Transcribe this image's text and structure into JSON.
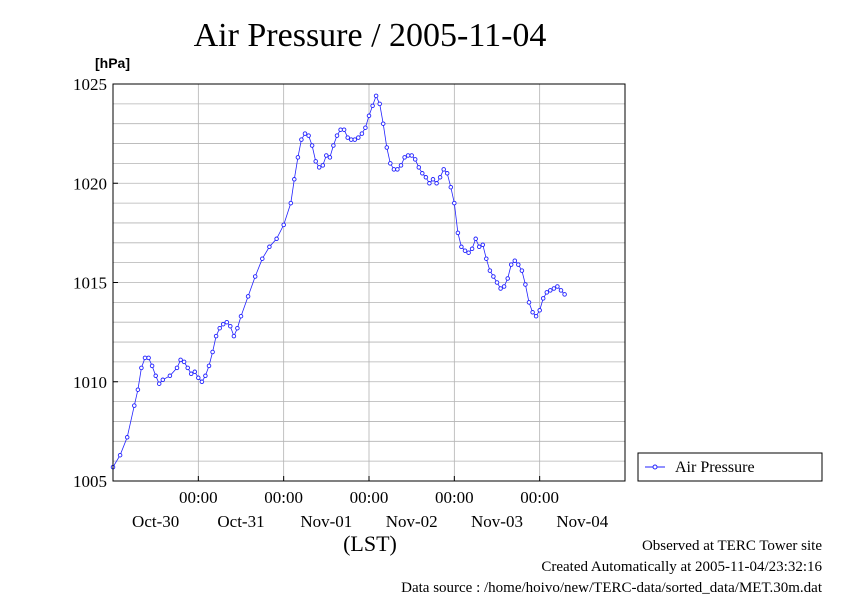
{
  "chart_data": {
    "type": "line",
    "title": "Air Pressure / 2005-11-04",
    "ylabel": "[hPa]",
    "xlabel": "(LST)",
    "ylim": [
      1005,
      1025
    ],
    "yticks": [
      "1005",
      "1010",
      "1015",
      "1020",
      "1025"
    ],
    "xlim_hours": [
      0,
      144
    ],
    "time_ticks": [
      "00:00",
      "00:00",
      "00:00",
      "00:00",
      "00:00"
    ],
    "date_ticks": [
      "Oct-30",
      "Oct-31",
      "Nov-01",
      "Nov-02",
      "Nov-03",
      "Nov-04"
    ],
    "grid": true,
    "legend_position": "right",
    "series": [
      {
        "name": "Air Pressure",
        "color": "#2222ff",
        "marker": "circle-open",
        "points": [
          [
            0,
            1005.7
          ],
          [
            2,
            1006.3
          ],
          [
            4,
            1007.2
          ],
          [
            6,
            1008.8
          ],
          [
            7,
            1009.6
          ],
          [
            8,
            1010.7
          ],
          [
            9,
            1011.2
          ],
          [
            10,
            1011.2
          ],
          [
            11,
            1010.8
          ],
          [
            12,
            1010.3
          ],
          [
            13,
            1009.9
          ],
          [
            14,
            1010.1
          ],
          [
            16,
            1010.3
          ],
          [
            18,
            1010.7
          ],
          [
            19,
            1011.1
          ],
          [
            20,
            1011.0
          ],
          [
            21,
            1010.7
          ],
          [
            22,
            1010.4
          ],
          [
            23,
            1010.5
          ],
          [
            24,
            1010.2
          ],
          [
            25,
            1010.0
          ],
          [
            26,
            1010.3
          ],
          [
            27,
            1010.8
          ],
          [
            28,
            1011.5
          ],
          [
            29,
            1012.3
          ],
          [
            30,
            1012.7
          ],
          [
            31,
            1012.9
          ],
          [
            32,
            1013.0
          ],
          [
            33,
            1012.8
          ],
          [
            34,
            1012.3
          ],
          [
            35,
            1012.7
          ],
          [
            36,
            1013.3
          ],
          [
            38,
            1014.3
          ],
          [
            40,
            1015.3
          ],
          [
            42,
            1016.2
          ],
          [
            44,
            1016.8
          ],
          [
            46,
            1017.2
          ],
          [
            48,
            1017.9
          ],
          [
            50,
            1019.0
          ],
          [
            51,
            1020.2
          ],
          [
            52,
            1021.3
          ],
          [
            53,
            1022.2
          ],
          [
            54,
            1022.5
          ],
          [
            55,
            1022.4
          ],
          [
            56,
            1021.9
          ],
          [
            57,
            1021.1
          ],
          [
            58,
            1020.8
          ],
          [
            59,
            1020.9
          ],
          [
            60,
            1021.4
          ],
          [
            61,
            1021.3
          ],
          [
            62,
            1021.9
          ],
          [
            63,
            1022.4
          ],
          [
            64,
            1022.7
          ],
          [
            65,
            1022.7
          ],
          [
            66,
            1022.3
          ],
          [
            67,
            1022.2
          ],
          [
            68,
            1022.2
          ],
          [
            69,
            1022.3
          ],
          [
            70,
            1022.5
          ],
          [
            71,
            1022.8
          ],
          [
            72,
            1023.4
          ],
          [
            73,
            1023.9
          ],
          [
            74,
            1024.4
          ],
          [
            75,
            1024.0
          ],
          [
            76,
            1023.0
          ],
          [
            77,
            1021.8
          ],
          [
            78,
            1021.0
          ],
          [
            79,
            1020.7
          ],
          [
            80,
            1020.7
          ],
          [
            81,
            1020.9
          ],
          [
            82,
            1021.3
          ],
          [
            83,
            1021.4
          ],
          [
            84,
            1021.4
          ],
          [
            85,
            1021.2
          ],
          [
            86,
            1020.8
          ],
          [
            87,
            1020.5
          ],
          [
            88,
            1020.3
          ],
          [
            89,
            1020.0
          ],
          [
            90,
            1020.2
          ],
          [
            91,
            1020.0
          ],
          [
            92,
            1020.3
          ],
          [
            93,
            1020.7
          ],
          [
            94,
            1020.5
          ],
          [
            95,
            1019.8
          ],
          [
            96,
            1019.0
          ],
          [
            97,
            1017.5
          ],
          [
            98,
            1016.8
          ],
          [
            99,
            1016.6
          ],
          [
            100,
            1016.5
          ],
          [
            101,
            1016.7
          ],
          [
            102,
            1017.2
          ],
          [
            103,
            1016.8
          ],
          [
            104,
            1016.9
          ],
          [
            105,
            1016.2
          ],
          [
            106,
            1015.6
          ],
          [
            107,
            1015.3
          ],
          [
            108,
            1015.0
          ],
          [
            109,
            1014.7
          ],
          [
            110,
            1014.8
          ],
          [
            111,
            1015.2
          ],
          [
            112,
            1015.9
          ],
          [
            113,
            1016.1
          ],
          [
            114,
            1015.9
          ],
          [
            115,
            1015.6
          ],
          [
            116,
            1014.9
          ],
          [
            117,
            1014.0
          ],
          [
            118,
            1013.5
          ],
          [
            119,
            1013.3
          ],
          [
            120,
            1013.6
          ],
          [
            121,
            1014.2
          ],
          [
            122,
            1014.5
          ],
          [
            123,
            1014.6
          ],
          [
            124,
            1014.7
          ],
          [
            125,
            1014.8
          ],
          [
            126,
            1014.6
          ],
          [
            127,
            1014.4
          ]
        ]
      }
    ]
  },
  "legend": {
    "label": "Air Pressure"
  },
  "footer": {
    "line1": "Observed at TERC Tower site",
    "line2": "Created Automatically at 2005-11-04/23:32:16",
    "line3": "Data source : /home/hoivo/new/TERC-data/sorted_data/MET.30m.dat"
  }
}
